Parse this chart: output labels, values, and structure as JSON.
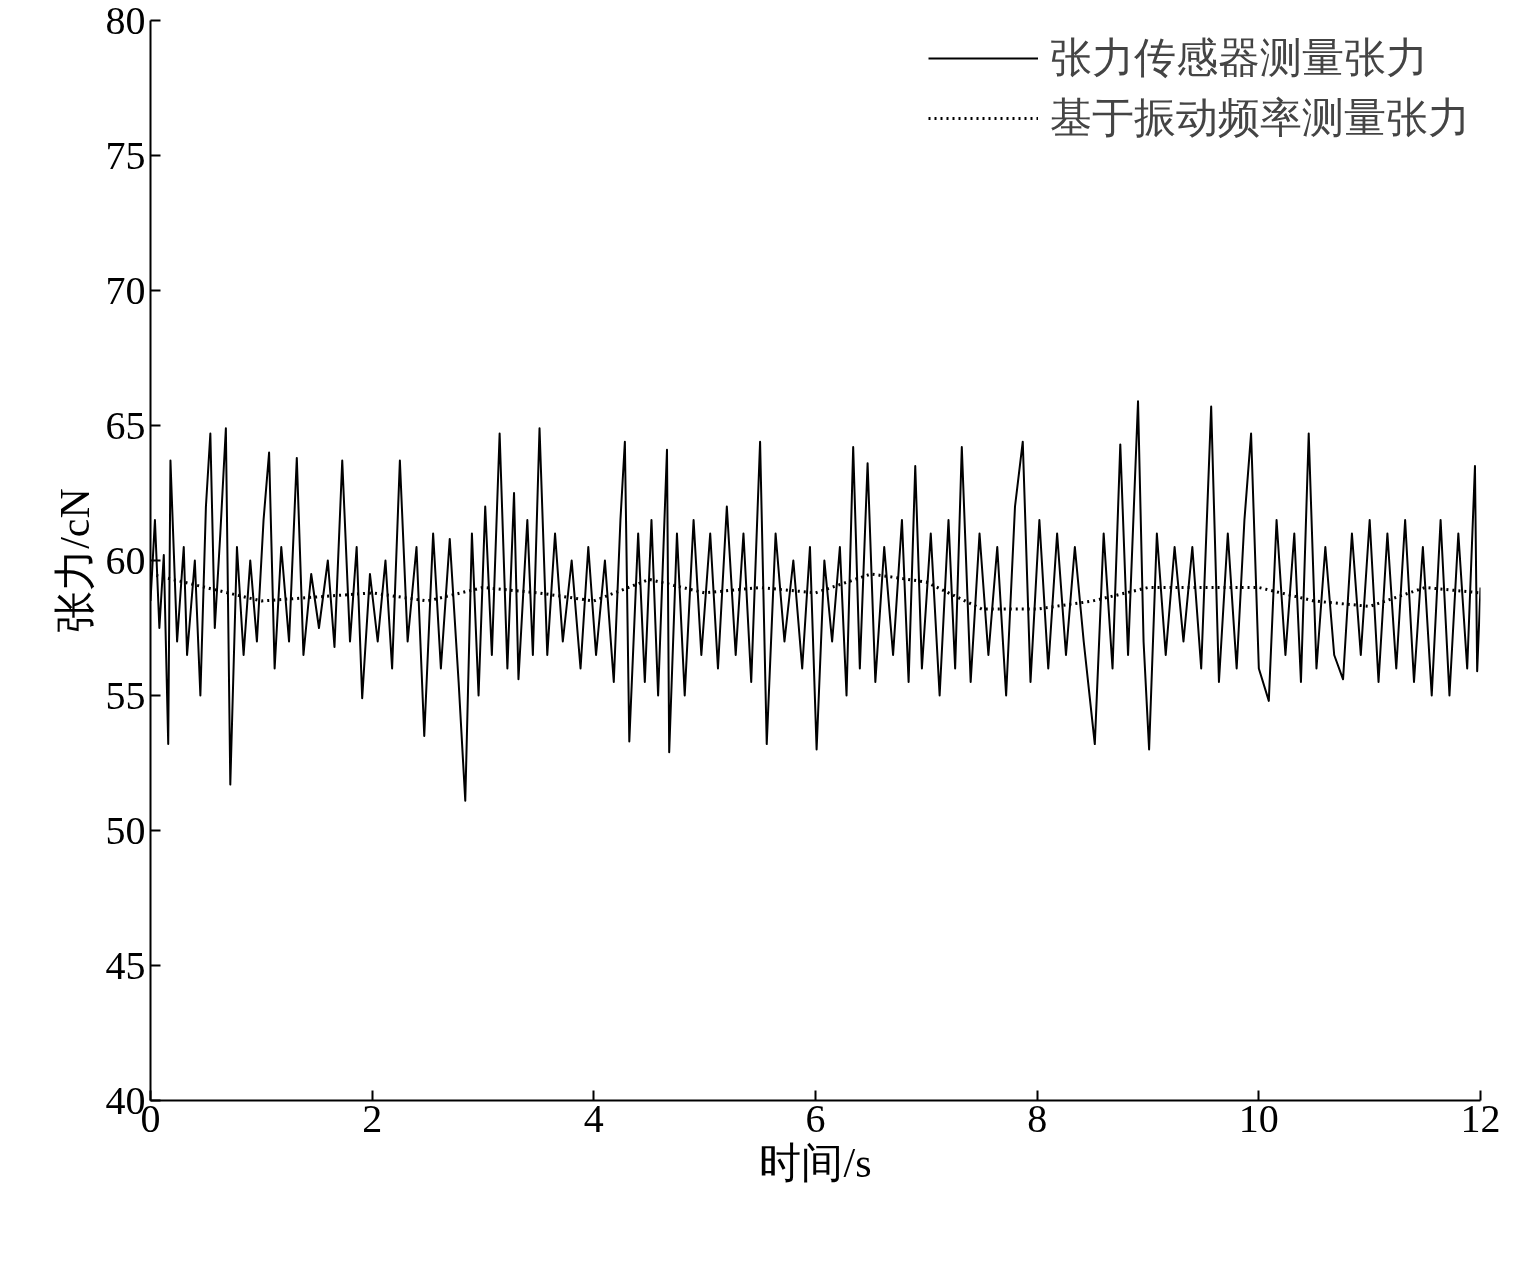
{
  "chart_data": {
    "type": "line",
    "xlabel": "时间/s",
    "ylabel": "张力/cN",
    "xlim": [
      0,
      12
    ],
    "xticks": [
      0,
      2,
      4,
      6,
      8,
      10,
      12
    ],
    "ylim": [
      40,
      80
    ],
    "yticks": [
      40,
      45,
      50,
      55,
      60,
      65,
      70,
      75,
      80
    ],
    "grid": false,
    "legend": "top right",
    "marker": "none",
    "series": [
      {
        "name": "张力传感器测量张力",
        "color": "#000000",
        "line_style": "solid",
        "x": [
          0.0,
          0.04,
          0.08,
          0.12,
          0.16,
          0.18,
          0.24,
          0.3,
          0.33,
          0.4,
          0.45,
          0.5,
          0.54,
          0.58,
          0.63,
          0.68,
          0.72,
          0.78,
          0.84,
          0.9,
          0.96,
          1.02,
          1.07,
          1.12,
          1.18,
          1.25,
          1.32,
          1.38,
          1.45,
          1.52,
          1.6,
          1.66,
          1.73,
          1.8,
          1.86,
          1.91,
          1.98,
          2.05,
          2.12,
          2.18,
          2.25,
          2.32,
          2.4,
          2.47,
          2.55,
          2.62,
          2.7,
          2.78,
          2.84,
          2.9,
          2.96,
          3.02,
          3.08,
          3.15,
          3.22,
          3.28,
          3.32,
          3.4,
          3.45,
          3.51,
          3.58,
          3.65,
          3.72,
          3.8,
          3.88,
          3.95,
          4.02,
          4.1,
          4.18,
          4.24,
          4.28,
          4.32,
          4.4,
          4.46,
          4.52,
          4.58,
          4.66,
          4.68,
          4.75,
          4.82,
          4.9,
          4.97,
          5.05,
          5.12,
          5.2,
          5.28,
          5.35,
          5.42,
          5.5,
          5.56,
          5.64,
          5.72,
          5.8,
          5.88,
          5.95,
          6.01,
          6.08,
          6.15,
          6.22,
          6.28,
          6.34,
          6.4,
          6.47,
          6.54,
          6.62,
          6.7,
          6.78,
          6.84,
          6.9,
          6.96,
          7.04,
          7.12,
          7.2,
          7.26,
          7.32,
          7.4,
          7.48,
          7.56,
          7.64,
          7.72,
          7.8,
          7.87,
          7.94,
          8.02,
          8.1,
          8.18,
          8.26,
          8.34,
          8.42,
          8.52,
          8.6,
          8.68,
          8.75,
          8.82,
          8.91,
          8.96,
          9.01,
          9.08,
          9.16,
          9.24,
          9.32,
          9.4,
          9.48,
          9.57,
          9.64,
          9.72,
          9.8,
          9.87,
          9.93,
          10.0,
          10.09,
          10.16,
          10.24,
          10.32,
          10.38,
          10.45,
          10.52,
          10.6,
          10.68,
          10.76,
          10.84,
          10.92,
          11.0,
          11.08,
          11.16,
          11.24,
          11.32,
          11.4,
          11.48,
          11.56,
          11.64,
          11.72,
          11.8,
          11.88,
          11.95,
          11.97,
          12.0
        ],
        "values": [
          58.5,
          61.5,
          57.5,
          60.2,
          53.2,
          63.7,
          57.0,
          60.5,
          56.5,
          60.0,
          55.0,
          62.0,
          64.7,
          57.5,
          61.0,
          64.9,
          51.7,
          60.5,
          56.5,
          60.0,
          57.0,
          61.5,
          64.0,
          56.0,
          60.5,
          57.0,
          63.8,
          56.5,
          59.5,
          57.5,
          60.0,
          56.8,
          63.7,
          57.0,
          60.5,
          54.9,
          59.5,
          57.0,
          60.0,
          56.0,
          63.7,
          57.0,
          60.5,
          53.5,
          61.0,
          56.0,
          60.8,
          55.5,
          51.1,
          61.0,
          55.0,
          62.0,
          56.5,
          64.7,
          56.0,
          62.5,
          55.6,
          61.5,
          56.5,
          64.9,
          56.5,
          61.0,
          57.0,
          60.0,
          56.0,
          60.5,
          56.5,
          60.0,
          55.5,
          61.5,
          64.4,
          53.3,
          61.0,
          55.5,
          61.5,
          55.0,
          64.1,
          52.9,
          61.0,
          55.0,
          61.5,
          56.5,
          61.0,
          56.0,
          62.0,
          56.5,
          61.0,
          55.5,
          64.4,
          53.2,
          61.0,
          57.0,
          60.0,
          56.0,
          60.5,
          53.0,
          60.0,
          57.0,
          60.5,
          55.0,
          64.2,
          56.0,
          63.6,
          55.5,
          60.5,
          56.5,
          61.5,
          55.5,
          63.5,
          56.0,
          61.0,
          55.0,
          61.5,
          56.0,
          64.2,
          55.5,
          61.0,
          56.5,
          60.5,
          55.0,
          62.0,
          64.4,
          55.5,
          61.5,
          56.0,
          61.0,
          56.5,
          60.5,
          57.0,
          53.2,
          61.0,
          56.0,
          64.3,
          56.5,
          65.9,
          57.0,
          53.0,
          61.0,
          56.5,
          60.5,
          57.0,
          60.5,
          56.0,
          65.7,
          55.5,
          61.0,
          56.0,
          61.5,
          64.7,
          56.0,
          54.8,
          61.5,
          56.5,
          61.0,
          55.5,
          64.7,
          56.0,
          60.5,
          56.5,
          55.6,
          61.0,
          56.5,
          61.5,
          55.5,
          61.0,
          56.0,
          61.5,
          55.5,
          60.5,
          55.0,
          61.5,
          55.0,
          61.0,
          56.0,
          63.5,
          55.9,
          59.0
        ]
      },
      {
        "name": "基于振动频率测量张力",
        "color": "#000000",
        "line_style": "dotted",
        "x": [
          0,
          1,
          2,
          2.5,
          3,
          3.5,
          4,
          4.5,
          5,
          5.5,
          6,
          6.5,
          7,
          7.5,
          8,
          8.5,
          9,
          9.5,
          10,
          10.5,
          11,
          11.5,
          12
        ],
        "values": [
          59.5,
          58.5,
          58.8,
          58.5,
          59.0,
          58.8,
          58.5,
          59.3,
          58.8,
          59.0,
          58.8,
          59.5,
          59.2,
          58.2,
          58.2,
          58.5,
          59.0,
          59.0,
          59.0,
          58.5,
          58.3,
          59.0,
          58.8
        ]
      }
    ]
  }
}
